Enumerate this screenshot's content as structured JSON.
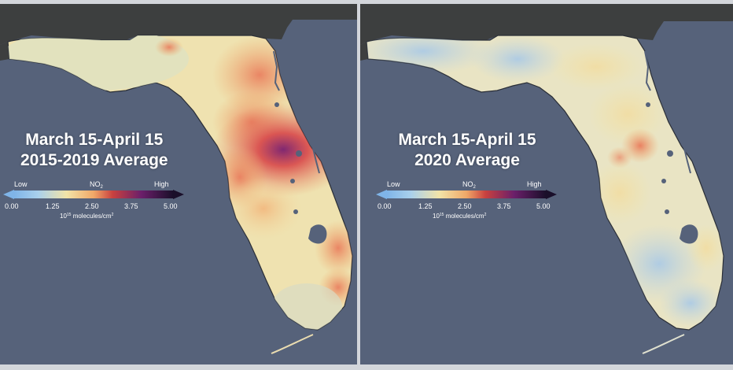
{
  "colors": {
    "ocean": "#56627a",
    "land_dark": "#3d3f3f",
    "border_gray": "#d3d6db",
    "scale": [
      "#7fb4e8",
      "#a9d0ec",
      "#f2e4a8",
      "#f0a868",
      "#c8413f",
      "#6b1f6a",
      "#1a0f2a"
    ]
  },
  "panels": [
    {
      "id": "left",
      "title_line1": "March 15-April 15",
      "title_line2": "2015-2019 Average",
      "legend": {
        "low_label": "Low",
        "high_label": "High",
        "pollutant": "NO",
        "pollutant_sub": "2",
        "ticks": [
          "0.00",
          "1.25",
          "2.50",
          "3.75",
          "5.00"
        ],
        "unit_prefix": "10",
        "unit_exp": "15",
        "unit_rest": " molecules/cm",
        "unit_sq": "2"
      },
      "tint": "hot"
    },
    {
      "id": "right",
      "title_line1": "March 15-April 15",
      "title_line2": "2020 Average",
      "legend": {
        "low_label": "Low",
        "high_label": "High",
        "pollutant": "NO",
        "pollutant_sub": "2",
        "ticks": [
          "0.00",
          "1.25",
          "2.50",
          "3.75",
          "5.00"
        ],
        "unit_prefix": "10",
        "unit_exp": "15",
        "unit_rest": " molecules/cm",
        "unit_sq": "2"
      },
      "tint": "cool"
    }
  ]
}
